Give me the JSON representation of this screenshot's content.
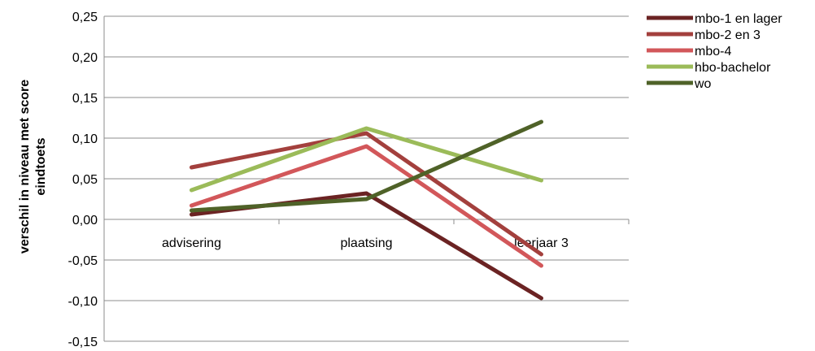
{
  "chart_data": {
    "type": "line",
    "categories": [
      "advisering",
      "plaatsing",
      "leerjaar 3"
    ],
    "ylabel_lines": [
      "verschil in niveau met score",
      "eindtoets"
    ],
    "ylim": [
      -0.15,
      0.25
    ],
    "y_ticks": [
      "0,25",
      "0,20",
      "0,15",
      "0,10",
      "0,05",
      "0,00",
      "-0,05",
      "-0,10",
      "-0,15"
    ],
    "grid": true,
    "legend_position": "top-right",
    "series": [
      {
        "name": "mbo-1 en lager",
        "color": "#6B2323",
        "values": [
          0.006,
          0.032,
          -0.097
        ]
      },
      {
        "name": "mbo-2 en 3",
        "color": "#A3403D",
        "values": [
          0.064,
          0.106,
          -0.043
        ]
      },
      {
        "name": "mbo-4",
        "color": "#D2575A",
        "values": [
          0.017,
          0.09,
          -0.057
        ]
      },
      {
        "name": "hbo-bachelor",
        "color": "#9BBB59",
        "values": [
          0.036,
          0.112,
          0.048
        ]
      },
      {
        "name": "wo",
        "color": "#4F6228",
        "values": [
          0.011,
          0.025,
          0.12
        ]
      }
    ]
  }
}
